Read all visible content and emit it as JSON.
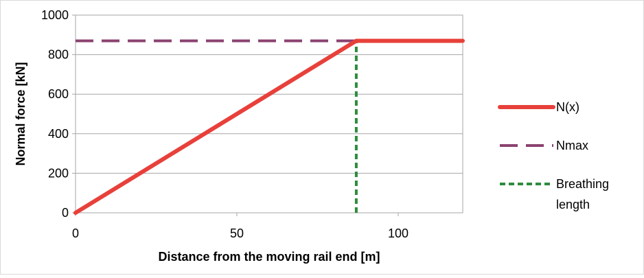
{
  "chart_data": {
    "type": "line",
    "title": "",
    "xlabel": "Distance from the moving rail end [m]",
    "ylabel": "Normal force [kN]",
    "xlim": [
      0,
      120
    ],
    "ylim": [
      0,
      1000
    ],
    "x_ticks": [
      0,
      50,
      100
    ],
    "y_ticks": [
      0,
      200,
      400,
      600,
      800,
      1000
    ],
    "grid": "horizontal",
    "legend_position": "right",
    "series": [
      {
        "name": "N(x)",
        "color": "#e8403a",
        "style": "solid",
        "x": [
          0,
          87,
          120
        ],
        "y": [
          0,
          870,
          870
        ]
      },
      {
        "name": "Nmax",
        "color": "#8b4270",
        "style": "dashed",
        "x": [
          0,
          120
        ],
        "y": [
          870,
          870
        ]
      },
      {
        "name": "Breathing length",
        "legend_lines": [
          "Breathing",
          "length"
        ],
        "color": "#2e8b3e",
        "style": "dotted",
        "x": [
          87,
          87
        ],
        "y": [
          0,
          870
        ]
      }
    ]
  }
}
